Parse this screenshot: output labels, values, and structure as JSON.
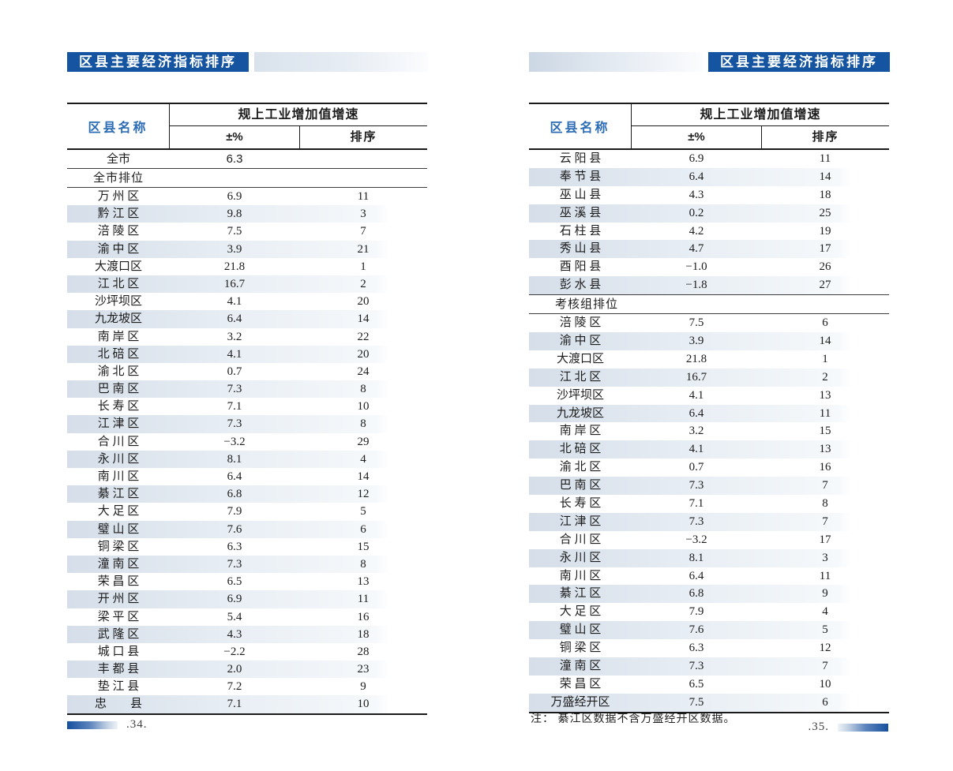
{
  "colors": {
    "badge_blue": "#1454a0",
    "name_header_blue": "#2b6cb5",
    "row_shade": "#d5dee9"
  },
  "left_page": {
    "header_title": "区县主要经济指标排序",
    "table": {
      "name_header": "区县名称",
      "group_header": "规上工业增加值增速",
      "pct_header": "±%",
      "rank_header": "排序",
      "citywide_row": {
        "name": "全市",
        "pct": "6.3",
        "rank": ""
      },
      "section_label": "全市排位",
      "rows": [
        {
          "name": "万 州 区",
          "pct": "6.9",
          "rank": "11"
        },
        {
          "name": "黔 江 区",
          "pct": "9.8",
          "rank": "3"
        },
        {
          "name": "涪 陵 区",
          "pct": "7.5",
          "rank": "7"
        },
        {
          "name": "渝 中 区",
          "pct": "3.9",
          "rank": "21"
        },
        {
          "name": "大渡口区",
          "pct": "21.8",
          "rank": "1"
        },
        {
          "name": "江 北 区",
          "pct": "16.7",
          "rank": "2"
        },
        {
          "name": "沙坪坝区",
          "pct": "4.1",
          "rank": "20"
        },
        {
          "name": "九龙坡区",
          "pct": "6.4",
          "rank": "14"
        },
        {
          "name": "南 岸 区",
          "pct": "3.2",
          "rank": "22"
        },
        {
          "name": "北 碚 区",
          "pct": "4.1",
          "rank": "20"
        },
        {
          "name": "渝 北 区",
          "pct": "0.7",
          "rank": "24"
        },
        {
          "name": "巴 南 区",
          "pct": "7.3",
          "rank": "8"
        },
        {
          "name": "长 寿 区",
          "pct": "7.1",
          "rank": "10"
        },
        {
          "name": "江 津 区",
          "pct": "7.3",
          "rank": "8"
        },
        {
          "name": "合 川 区",
          "pct": "−3.2",
          "rank": "29"
        },
        {
          "name": "永 川 区",
          "pct": "8.1",
          "rank": "4"
        },
        {
          "name": "南 川 区",
          "pct": "6.4",
          "rank": "14"
        },
        {
          "name": "綦 江 区",
          "pct": "6.8",
          "rank": "12"
        },
        {
          "name": "大 足 区",
          "pct": "7.9",
          "rank": "5"
        },
        {
          "name": "璧 山 区",
          "pct": "7.6",
          "rank": "6"
        },
        {
          "name": "铜 梁 区",
          "pct": "6.3",
          "rank": "15"
        },
        {
          "name": "潼 南 区",
          "pct": "7.3",
          "rank": "8"
        },
        {
          "name": "荣 昌 区",
          "pct": "6.5",
          "rank": "13"
        },
        {
          "name": "开 州 区",
          "pct": "6.9",
          "rank": "11"
        },
        {
          "name": "梁 平 区",
          "pct": "5.4",
          "rank": "16"
        },
        {
          "name": "武 隆 区",
          "pct": "4.3",
          "rank": "18"
        },
        {
          "name": "城 口 县",
          "pct": "−2.2",
          "rank": "28"
        },
        {
          "name": "丰 都 县",
          "pct": "2.0",
          "rank": "23"
        },
        {
          "name": "垫 江 县",
          "pct": "7.2",
          "rank": "9"
        },
        {
          "name": "忠　　县",
          "pct": "7.1",
          "rank": "10"
        }
      ]
    },
    "page_number": ".34."
  },
  "right_page": {
    "header_title": "区县主要经济指标排序",
    "table": {
      "name_header": "区县名称",
      "group_header": "规上工业增加值增速",
      "pct_header": "±%",
      "rank_header": "排序",
      "county_rows": [
        {
          "name": "云 阳 县",
          "pct": "6.9",
          "rank": "11"
        },
        {
          "name": "奉 节 县",
          "pct": "6.4",
          "rank": "14"
        },
        {
          "name": "巫 山 县",
          "pct": "4.3",
          "rank": "18"
        },
        {
          "name": "巫 溪 县",
          "pct": "0.2",
          "rank": "25"
        },
        {
          "name": "石 柱 县",
          "pct": "4.2",
          "rank": "19"
        },
        {
          "name": "秀 山 县",
          "pct": "4.7",
          "rank": "17"
        },
        {
          "name": "酉 阳 县",
          "pct": "−1.0",
          "rank": "26"
        },
        {
          "name": "彭 水 县",
          "pct": "−1.8",
          "rank": "27"
        }
      ],
      "section_label": "考核组排位",
      "group_rows": [
        {
          "name": "涪 陵 区",
          "pct": "7.5",
          "rank": "6"
        },
        {
          "name": "渝 中 区",
          "pct": "3.9",
          "rank": "14"
        },
        {
          "name": "大渡口区",
          "pct": "21.8",
          "rank": "1"
        },
        {
          "name": "江 北 区",
          "pct": "16.7",
          "rank": "2"
        },
        {
          "name": "沙坪坝区",
          "pct": "4.1",
          "rank": "13"
        },
        {
          "name": "九龙坡区",
          "pct": "6.4",
          "rank": "11"
        },
        {
          "name": "南 岸 区",
          "pct": "3.2",
          "rank": "15"
        },
        {
          "name": "北 碚 区",
          "pct": "4.1",
          "rank": "13"
        },
        {
          "name": "渝 北 区",
          "pct": "0.7",
          "rank": "16"
        },
        {
          "name": "巴 南 区",
          "pct": "7.3",
          "rank": "7"
        },
        {
          "name": "长 寿 区",
          "pct": "7.1",
          "rank": "8"
        },
        {
          "name": "江 津 区",
          "pct": "7.3",
          "rank": "7"
        },
        {
          "name": "合 川 区",
          "pct": "−3.2",
          "rank": "17"
        },
        {
          "name": "永 川 区",
          "pct": "8.1",
          "rank": "3"
        },
        {
          "name": "南 川 区",
          "pct": "6.4",
          "rank": "11"
        },
        {
          "name": "綦 江 区",
          "pct": "6.8",
          "rank": "9"
        },
        {
          "name": "大 足 区",
          "pct": "7.9",
          "rank": "4"
        },
        {
          "name": "璧 山 区",
          "pct": "7.6",
          "rank": "5"
        },
        {
          "name": "铜 梁 区",
          "pct": "6.3",
          "rank": "12"
        },
        {
          "name": "潼 南 区",
          "pct": "7.3",
          "rank": "7"
        },
        {
          "name": "荣 昌 区",
          "pct": "6.5",
          "rank": "10"
        },
        {
          "name": "万盛经开区",
          "pct": "7.5",
          "rank": "6"
        }
      ]
    },
    "note": "注： 綦江区数据不含万盛经开区数据。",
    "page_number": ".35."
  }
}
